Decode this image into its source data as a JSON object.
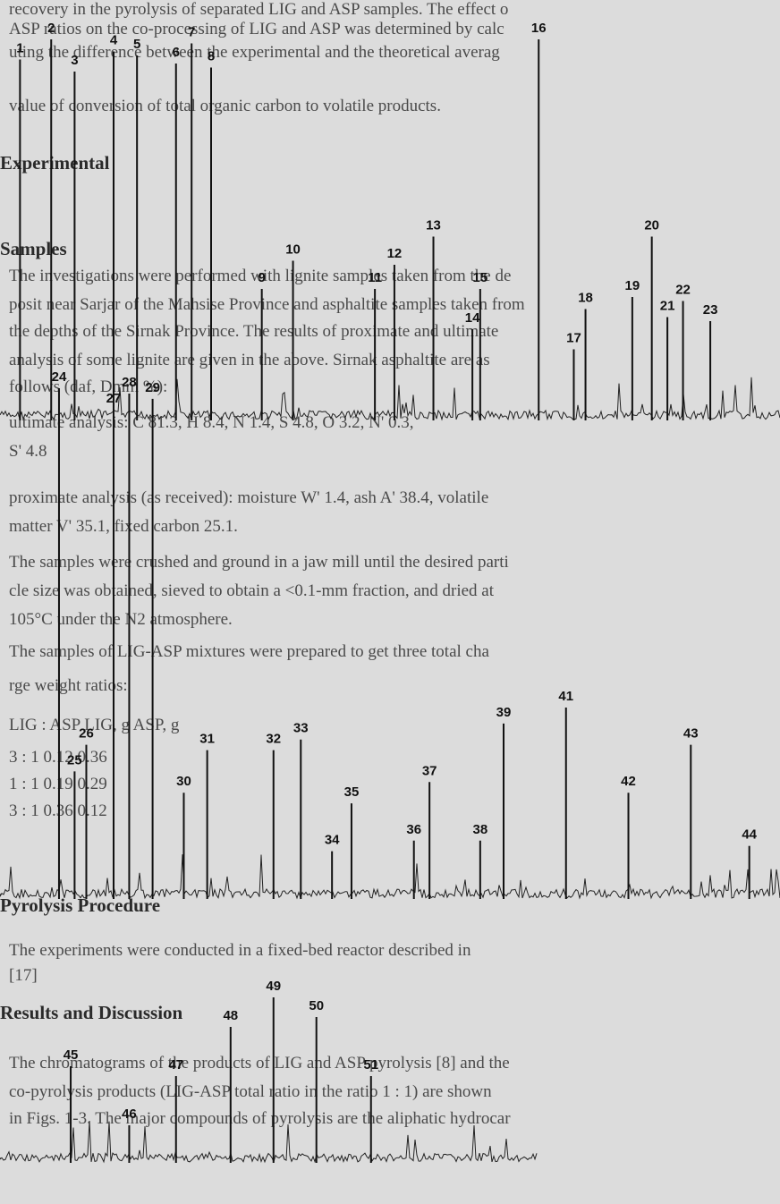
{
  "background_text": [
    {
      "text": "recovery in the pyrolysis of separated LIG and ASP samples. The effect o",
      "bold": false
    },
    {
      "text": "ASP ratios on the co-processing of LIG and ASP was determined by calc",
      "bold": false
    },
    {
      "text": "uting the difference between the experimental and the theoretical averag",
      "bold": false
    },
    {
      "text": "value of conversion of total organic carbon to volatile products.",
      "bold": false
    },
    {
      "text": "Experimental",
      "bold": true
    },
    {
      "text": "Samples",
      "bold": true
    },
    {
      "text": "The investigations were performed with lignite samples taken from the de",
      "bold": false
    },
    {
      "text": "posit near Sarjar of the Mahsise Province and asphaltite samples taken from",
      "bold": false
    },
    {
      "text": "the depths of the Sirnak Province. The results of proximate and ultimate",
      "bold": false
    },
    {
      "text": "analysis of some lignite are given in the above. Sirnak asphaltite are as",
      "bold": false
    },
    {
      "text": "follows (daf, Dmm %):",
      "bold": false
    },
    {
      "text": "ultimate analysis: C 81.3, H 8.4, N 1.4, S 4.8, O 3.2, N' 0.3,",
      "bold": false
    },
    {
      "text": "S' 4.8",
      "bold": false
    },
    {
      "text": "proximate analysis (as received): moisture W' 1.4, ash A' 38.4, volatile",
      "bold": false
    },
    {
      "text": "matter V' 35.1, fixed carbon 25.1.",
      "bold": false
    },
    {
      "text": "The samples were crushed and ground in a jaw mill until the desired parti",
      "bold": false
    },
    {
      "text": "cle size was obtained, sieved to obtain a <0.1-mm fraction, and dried at",
      "bold": false
    },
    {
      "text": "105°C under the N2 atmosphere.",
      "bold": false
    },
    {
      "text": "The samples of LIG-ASP mixtures were prepared to get three total cha",
      "bold": false
    },
    {
      "text": "rge weight ratios:",
      "bold": false
    },
    {
      "text": "LIG : ASP   LIG, g   ASP, g",
      "bold": false
    },
    {
      "text": "3 : 1          0.12        0.36",
      "bold": false
    },
    {
      "text": "1 : 1          0.19        0.29",
      "bold": false
    },
    {
      "text": "3 : 1          0.36        0.12",
      "bold": false
    },
    {
      "text": "Pyrolysis Procedure",
      "bold": true
    },
    {
      "text": "The experiments were conducted in a fixed-bed reactor described in",
      "bold": false
    },
    {
      "text": "[17]",
      "bold": false
    },
    {
      "text": "Results and Discussion",
      "bold": true
    },
    {
      "text": "The chromatograms of the products of LIG and ASP pyrolysis [8] and the",
      "bold": false
    },
    {
      "text": "co-pyrolysis products (LIG-ASP total ratio in the ratio 1 : 1) are shown",
      "bold": false
    },
    {
      "text": "in Figs. 1-3. The major compounds of pyrolysis are the aliphatic hydrocar",
      "bold": false
    }
  ],
  "chart_data": [
    {
      "type": "line",
      "title": "",
      "xlabel": "",
      "ylabel": "",
      "peaks": [
        {
          "label": "1",
          "x": 0.5,
          "y": 0.95
        },
        {
          "label": "2",
          "x": 4.5,
          "y": 1.0
        },
        {
          "label": "3",
          "x": 7.5,
          "y": 0.92
        },
        {
          "label": "4",
          "x": 12.5,
          "y": 0.97
        },
        {
          "label": "5",
          "x": 15.5,
          "y": 0.96
        },
        {
          "label": "6",
          "x": 20.5,
          "y": 0.94
        },
        {
          "label": "7",
          "x": 22.5,
          "y": 0.99
        },
        {
          "label": "8",
          "x": 25.0,
          "y": 0.93
        },
        {
          "label": "9",
          "x": 31.5,
          "y": 0.38
        },
        {
          "label": "10",
          "x": 35.5,
          "y": 0.45
        },
        {
          "label": "11",
          "x": 46.0,
          "y": 0.38
        },
        {
          "label": "12",
          "x": 48.5,
          "y": 0.44
        },
        {
          "label": "13",
          "x": 53.5,
          "y": 0.51
        },
        {
          "label": "14",
          "x": 58.5,
          "y": 0.28
        },
        {
          "label": "15",
          "x": 59.5,
          "y": 0.38
        },
        {
          "label": "16",
          "x": 67.0,
          "y": 1.0
        },
        {
          "label": "17",
          "x": 71.5,
          "y": 0.23
        },
        {
          "label": "18",
          "x": 73.0,
          "y": 0.33
        },
        {
          "label": "19",
          "x": 79.0,
          "y": 0.36
        },
        {
          "label": "20",
          "x": 81.5,
          "y": 0.51
        },
        {
          "label": "21",
          "x": 83.5,
          "y": 0.31
        },
        {
          "label": "22",
          "x": 85.5,
          "y": 0.35
        },
        {
          "label": "23",
          "x": 89.0,
          "y": 0.3
        }
      ]
    },
    {
      "type": "line",
      "title": "",
      "xlabel": "",
      "ylabel": "",
      "peaks": [
        {
          "label": "24",
          "x": 5.5,
          "y": 1.0
        },
        {
          "label": "25",
          "x": 7.5,
          "y": 0.28
        },
        {
          "label": "26",
          "x": 9.0,
          "y": 0.33
        },
        {
          "label": "27",
          "x": 12.5,
          "y": 0.96
        },
        {
          "label": "28",
          "x": 14.5,
          "y": 0.99
        },
        {
          "label": "29",
          "x": 17.5,
          "y": 0.98
        },
        {
          "label": "30",
          "x": 21.5,
          "y": 0.24
        },
        {
          "label": "31",
          "x": 24.5,
          "y": 0.32
        },
        {
          "label": "32",
          "x": 33.0,
          "y": 0.32
        },
        {
          "label": "33",
          "x": 36.5,
          "y": 0.34
        },
        {
          "label": "34",
          "x": 40.5,
          "y": 0.13
        },
        {
          "label": "35",
          "x": 43.0,
          "y": 0.22
        },
        {
          "label": "36",
          "x": 51.0,
          "y": 0.15
        },
        {
          "label": "37",
          "x": 53.0,
          "y": 0.26
        },
        {
          "label": "38",
          "x": 59.5,
          "y": 0.15
        },
        {
          "label": "39",
          "x": 62.5,
          "y": 0.37
        },
        {
          "label": "41",
          "x": 70.5,
          "y": 0.4
        },
        {
          "label": "42",
          "x": 78.5,
          "y": 0.24
        },
        {
          "label": "43",
          "x": 86.5,
          "y": 0.33
        },
        {
          "label": "44",
          "x": 94.0,
          "y": 0.14
        }
      ]
    },
    {
      "type": "line",
      "title": "",
      "xlabel": "",
      "ylabel": "",
      "peaks": [
        {
          "label": "45",
          "x": 7.0,
          "y": 0.6
        },
        {
          "label": "46",
          "x": 14.5,
          "y": 0.3
        },
        {
          "label": "47",
          "x": 20.5,
          "y": 0.55
        },
        {
          "label": "48",
          "x": 27.5,
          "y": 0.8
        },
        {
          "label": "49",
          "x": 33.0,
          "y": 0.95
        },
        {
          "label": "50",
          "x": 38.5,
          "y": 0.85
        },
        {
          "label": "51",
          "x": 45.5,
          "y": 0.55
        }
      ]
    }
  ]
}
